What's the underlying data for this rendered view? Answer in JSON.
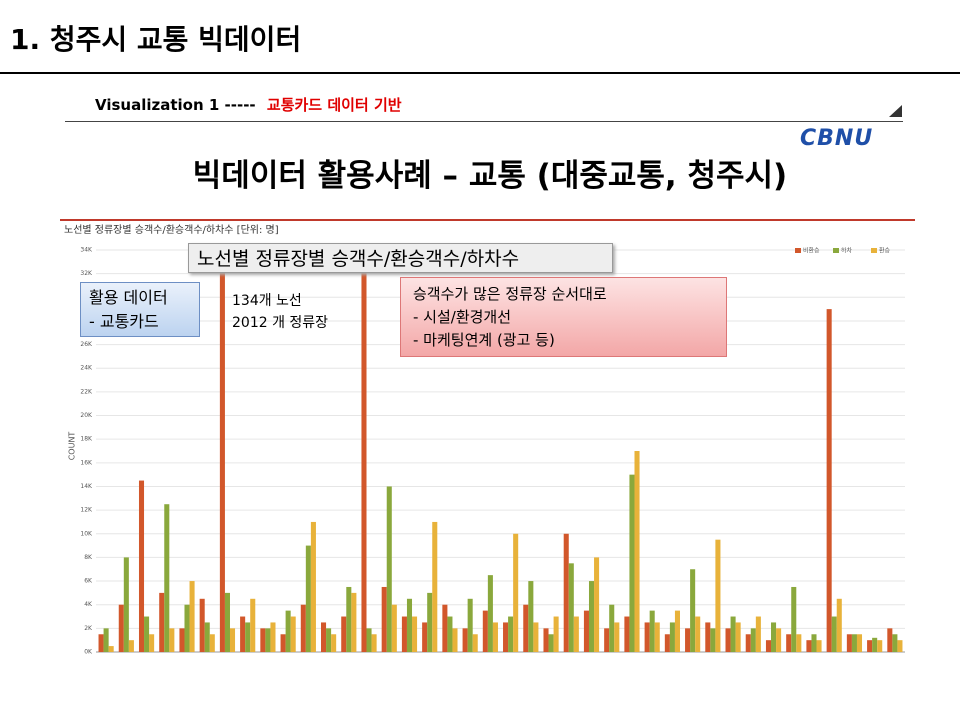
{
  "header": {
    "title": "1. 청주시 교통 빅데이터"
  },
  "subheader": {
    "label": "Visualization  1 -----",
    "highlight": "교통카드 데이터 기반"
  },
  "logo": "CBNU",
  "slide_title": "빅데이터 활용사례 – 교통 (대중교통, 청주시)",
  "callouts": {
    "chart_heading": "노선별 정류장별 승객수/환승객수/하차수",
    "data_box": [
      "활용 데이터",
      "- 교통카드"
    ],
    "stats": [
      "134개 노선",
      "2012 개 정류장"
    ],
    "order_box": {
      "title": "승객수가 많은 정류장 순서대로",
      "items": [
        "-   시설/환경개선",
        "-   마케팅연계 (광고 등)"
      ]
    }
  },
  "chart_data": {
    "type": "bar",
    "title": "노선별 정류장별 승객수/환승객수/하차수 [단위: 명]",
    "y_label": "COUNT",
    "ylim": [
      0,
      34000
    ],
    "yticks": [
      {
        "value": 0,
        "label": "0K"
      },
      {
        "value": 2000,
        "label": "2K"
      },
      {
        "value": 4000,
        "label": "4K"
      },
      {
        "value": 6000,
        "label": "6K"
      },
      {
        "value": 8000,
        "label": "8K"
      },
      {
        "value": 10000,
        "label": "10K"
      },
      {
        "value": 12000,
        "label": "12K"
      },
      {
        "value": 14000,
        "label": "14K"
      },
      {
        "value": 16000,
        "label": "16K"
      },
      {
        "value": 18000,
        "label": "18K"
      },
      {
        "value": 20000,
        "label": "20K"
      },
      {
        "value": 22000,
        "label": "22K"
      },
      {
        "value": 24000,
        "label": "24K"
      },
      {
        "value": 26000,
        "label": "26K"
      },
      {
        "value": 28000,
        "label": "28K"
      },
      {
        "value": 30000,
        "label": "30K"
      },
      {
        "value": 32000,
        "label": "32K"
      },
      {
        "value": 34000,
        "label": "34K"
      }
    ],
    "grid": true,
    "legend": "top-right",
    "categories": [
      null,
      null,
      null,
      null,
      null,
      null,
      null,
      null,
      null,
      null,
      null,
      null,
      null,
      null,
      null,
      null,
      null,
      null,
      null,
      null,
      null,
      null,
      null,
      null,
      null,
      null,
      null,
      null,
      null,
      null,
      null,
      null,
      null,
      null,
      null,
      null,
      null,
      null,
      null,
      null
    ],
    "series": [
      {
        "name": "비환승",
        "color": "#d2572b",
        "values": [
          1500,
          4000,
          14500,
          5000,
          2000,
          4500,
          33000,
          3000,
          2000,
          1500,
          4000,
          2500,
          3000,
          33000,
          5500,
          3000,
          2500,
          4000,
          2000,
          3500,
          2500,
          4000,
          2000,
          10000,
          3500,
          2000,
          3000,
          2500,
          1500,
          2000,
          2500,
          2000,
          1500,
          1000,
          1500,
          1000,
          29000,
          1500,
          1000,
          2000
        ]
      },
      {
        "name": "하차",
        "color": "#8aa83c",
        "values": [
          2000,
          8000,
          3000,
          12500,
          4000,
          2500,
          5000,
          2500,
          2000,
          3500,
          9000,
          2000,
          5500,
          2000,
          14000,
          4500,
          5000,
          3000,
          4500,
          6500,
          3000,
          6000,
          1500,
          7500,
          6000,
          4000,
          15000,
          3500,
          2500,
          7000,
          2000,
          3000,
          2000,
          2500,
          5500,
          1500,
          3000,
          1500,
          1200,
          1500
        ]
      },
      {
        "name": "환승",
        "color": "#e8b23a",
        "values": [
          500,
          1000,
          1500,
          2000,
          6000,
          1500,
          2000,
          4500,
          2500,
          3000,
          11000,
          1500,
          5000,
          1500,
          4000,
          3000,
          11000,
          2000,
          1500,
          2500,
          10000,
          2500,
          3000,
          3000,
          8000,
          2500,
          17000,
          2500,
          3500,
          3000,
          9500,
          2500,
          3000,
          2000,
          1500,
          1000,
          4500,
          1500,
          1000,
          1000
        ]
      }
    ]
  }
}
